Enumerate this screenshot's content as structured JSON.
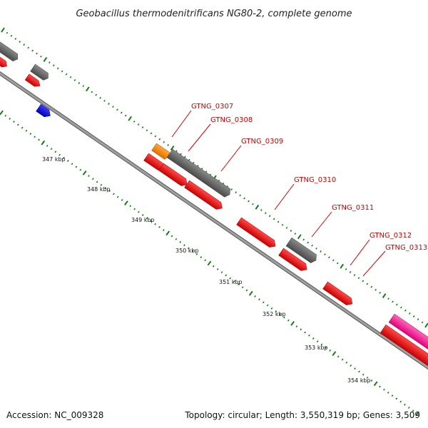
{
  "title": "Geobacillus thermodenitrificans NG80-2, complete genome",
  "accession": "Accession: NC_009328",
  "topology": "Topology: circular; Length: 3,550,319 bp; Genes: 3,509",
  "colors": {
    "backbone": "#999999",
    "backbone_edge": "#555555",
    "ruler": "#1a7a1a",
    "label": "#cc0000",
    "red": "#ff0000",
    "gray": "#666666",
    "orange": "#ff8c00",
    "blue": "#0000ee",
    "pink": "#ff3399"
  },
  "kbp_labels": [
    "347 kbp",
    "348 kbp",
    "349 kbp",
    "350 kbp",
    "351 kbp",
    "352 kbp",
    "353 kbp",
    "354 kbp"
  ],
  "gene_labels": [
    "GTNG_0307",
    "GTNG_0308",
    "GTNG_0309",
    "GTNG_0310",
    "GTNG_0311",
    "GTNG_0312",
    "GTNG_0313"
  ]
}
